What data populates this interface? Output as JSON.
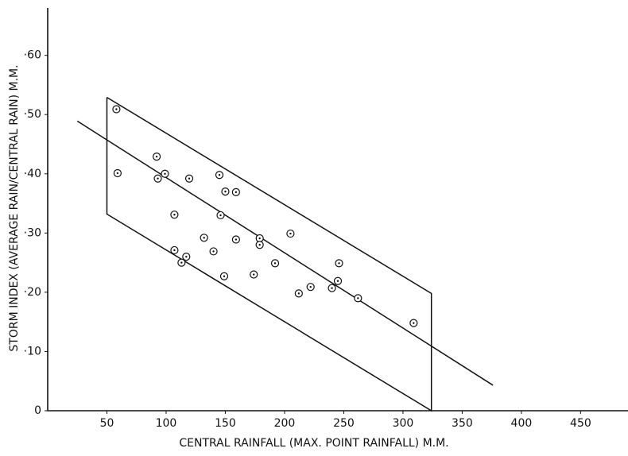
{
  "chart_data": {
    "type": "scatter",
    "x_label": "CENTRAL RAINFALL (MAX. POINT RAINFALL) M.M.",
    "y_label": "STORM INDEX (AVERAGE RAIN/CENTRAL RAIN) M.M.",
    "xlim": [
      0,
      490
    ],
    "ylim": [
      0,
      0.68
    ],
    "xticks": [
      50,
      100,
      150,
      200,
      250,
      300,
      350,
      400,
      450
    ],
    "yticks": [
      0,
      {
        "value": 0.1,
        "label": "·10"
      },
      {
        "value": 0.2,
        "label": "·20"
      },
      {
        "value": 0.3,
        "label": "·30"
      },
      {
        "value": 0.4,
        "label": "·40"
      },
      {
        "value": 0.5,
        "label": "·50"
      },
      {
        "value": 0.6,
        "label": "·60"
      }
    ],
    "color": "#111111",
    "x": [
      58,
      59,
      92,
      93,
      99,
      107,
      107,
      119.5,
      113,
      117,
      132,
      140,
      145,
      146,
      150,
      149,
      159,
      159,
      174,
      179,
      179,
      192,
      205,
      212,
      222,
      240,
      245,
      246,
      262,
      309
    ],
    "values": [
      0.509,
      0.401,
      0.429,
      0.392,
      0.4,
      0.331,
      0.271,
      0.392,
      0.25,
      0.26,
      0.292,
      0.269,
      0.398,
      0.33,
      0.37,
      0.227,
      0.369,
      0.289,
      0.23,
      0.291,
      0.28,
      0.249,
      0.299,
      0.198,
      0.209,
      0.207,
      0.219,
      0.249,
      0.19,
      0.148
    ],
    "regression": {
      "x": [
        25,
        376
      ],
      "y": [
        0.489,
        0.043
      ]
    },
    "envelope": {
      "x": [
        50,
        50,
        324,
        324,
        50
      ],
      "y": [
        0.529,
        0.332,
        0,
        0.198,
        0.529
      ]
    }
  }
}
